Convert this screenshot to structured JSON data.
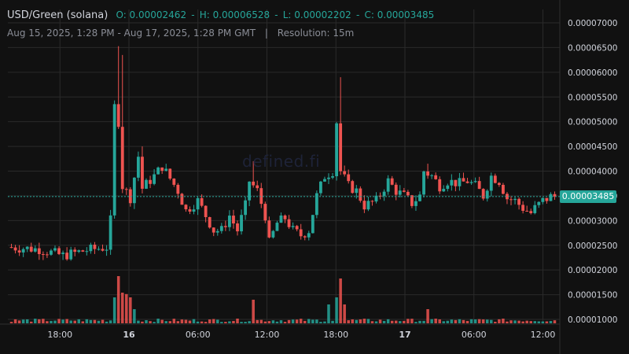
{
  "header": {
    "pair": "USD/Green (solana)",
    "open": "O: 0.00002462",
    "high": "H: 0.00006528",
    "low": "L: 0.00002202",
    "close": "C: 0.00003485",
    "range": "Aug 15, 2025, 1:28 PM - Aug 17, 2025, 1:28 PM GMT",
    "separator": "|",
    "resolution": "Resolution: 15m"
  },
  "watermark": "defined.fi",
  "last_price_label": "0.00003485",
  "colors": {
    "background": "#111111",
    "up": "#26a69a",
    "down": "#ef5350",
    "grid": "#2a2a2a",
    "axis_text": "#d1d4dc"
  },
  "chart_data": {
    "type": "candlestick",
    "interval": "15m",
    "y_ticks": [
      "0.00007000",
      "0.00006500",
      "0.00006000",
      "0.00005500",
      "0.00005000",
      "0.00004500",
      "0.00004000",
      "0.00003500",
      "0.00003000",
      "0.00002500",
      "0.00002000",
      "0.00001500",
      "0.00001000"
    ],
    "x_ticks": [
      {
        "label": "18:00",
        "hour": 18
      },
      {
        "label": "16",
        "hour": 24,
        "bold": true
      },
      {
        "label": "06:00",
        "hour": 30
      },
      {
        "label": "12:00",
        "hour": 36
      },
      {
        "label": "18:00",
        "hour": 42
      },
      {
        "label": "17",
        "hour": 48,
        "bold": true
      },
      {
        "label": "06:00",
        "hour": 54
      },
      {
        "label": "12:00",
        "hour": 60
      }
    ],
    "x_range_hours": [
      13.47,
      61.47
    ],
    "ylim": [
      9.2e-06,
      7.22e-05
    ],
    "last_price": 3.485e-05,
    "open": 2.462e-05,
    "high": 6.528e-05,
    "low": 2.202e-05,
    "close": 3.485e-05,
    "anchors": [
      [
        0,
        2.462e-05
      ],
      [
        8,
        2.42e-05
      ],
      [
        14,
        2.29e-05
      ],
      [
        20,
        2.4e-05
      ],
      [
        25,
        2.46e-05
      ],
      [
        26,
        3e-05
      ],
      [
        27,
        5.3e-05
      ],
      [
        28,
        5e-05
      ],
      [
        29,
        3.7e-05
      ],
      [
        31,
        3.46e-05
      ],
      [
        33,
        4.3e-05
      ],
      [
        34,
        3.65e-05
      ],
      [
        37,
        3.9e-05
      ],
      [
        39,
        4.1e-05
      ],
      [
        41,
        3.85e-05
      ],
      [
        43,
        3.6e-05
      ],
      [
        45,
        3.2e-05
      ],
      [
        48,
        3.4e-05
      ],
      [
        50,
        3.1e-05
      ],
      [
        52,
        2.8e-05
      ],
      [
        54,
        2.8e-05
      ],
      [
        56,
        3.1e-05
      ],
      [
        58,
        2.8e-05
      ],
      [
        60,
        3.3e-05
      ],
      [
        61,
        3.8e-05
      ],
      [
        63,
        3.6e-05
      ],
      [
        65,
        3.1e-05
      ],
      [
        66,
        2.55e-05
      ],
      [
        68,
        2.95e-05
      ],
      [
        70,
        3.05e-05
      ],
      [
        72,
        2.8e-05
      ],
      [
        74,
        2.7e-05
      ],
      [
        76,
        2.8e-05
      ],
      [
        78,
        3.5e-05
      ],
      [
        80,
        3.9e-05
      ],
      [
        82,
        4e-05
      ],
      [
        83,
        5e-05
      ],
      [
        84,
        4e-05
      ],
      [
        86,
        3.7e-05
      ],
      [
        88,
        3.6e-05
      ],
      [
        90,
        3.3e-05
      ],
      [
        93,
        3.4e-05
      ],
      [
        96,
        3.8e-05
      ],
      [
        98,
        3.6e-05
      ],
      [
        100,
        3.5e-05
      ],
      [
        102,
        3.35e-05
      ],
      [
        104,
        3.5e-05
      ],
      [
        105,
        4e-05
      ],
      [
        107,
        3.9e-05
      ],
      [
        109,
        3.7e-05
      ],
      [
        111,
        3.8e-05
      ],
      [
        114,
        3.75e-05
      ],
      [
        116,
        3.8e-05
      ],
      [
        118,
        3.7e-05
      ],
      [
        120,
        3.5e-05
      ],
      [
        122,
        3.9e-05
      ],
      [
        124,
        3.8e-05
      ],
      [
        126,
        3.45e-05
      ],
      [
        128,
        3.4e-05
      ],
      [
        130,
        3.25e-05
      ],
      [
        132,
        3.15e-05
      ],
      [
        133,
        3.25e-05
      ],
      [
        135,
        3.4e-05
      ],
      [
        137,
        3.485e-05
      ]
    ],
    "spikes": [
      {
        "index": 27,
        "high": 6.528e-05
      },
      {
        "index": 28,
        "high": 6.35e-05
      },
      {
        "index": 33,
        "high": 4.5e-05
      },
      {
        "index": 61,
        "high": 4.2e-05
      },
      {
        "index": 83,
        "high": 5.9e-05
      },
      {
        "index": 82,
        "high": 4.5e-05
      },
      {
        "index": 105,
        "high": 4.15e-05
      }
    ],
    "volume_spikes": [
      {
        "index": 26,
        "volume": 0.55
      },
      {
        "index": 27,
        "volume": 1.0
      },
      {
        "index": 28,
        "volume": 0.65
      },
      {
        "index": 29,
        "volume": 0.62
      },
      {
        "index": 30,
        "volume": 0.55
      },
      {
        "index": 31,
        "volume": 0.3
      },
      {
        "index": 61,
        "volume": 0.5
      },
      {
        "index": 80,
        "volume": 0.4
      },
      {
        "index": 82,
        "volume": 0.55
      },
      {
        "index": 83,
        "volume": 0.95
      },
      {
        "index": 84,
        "volume": 0.4
      },
      {
        "index": 105,
        "volume": 0.3
      }
    ]
  }
}
